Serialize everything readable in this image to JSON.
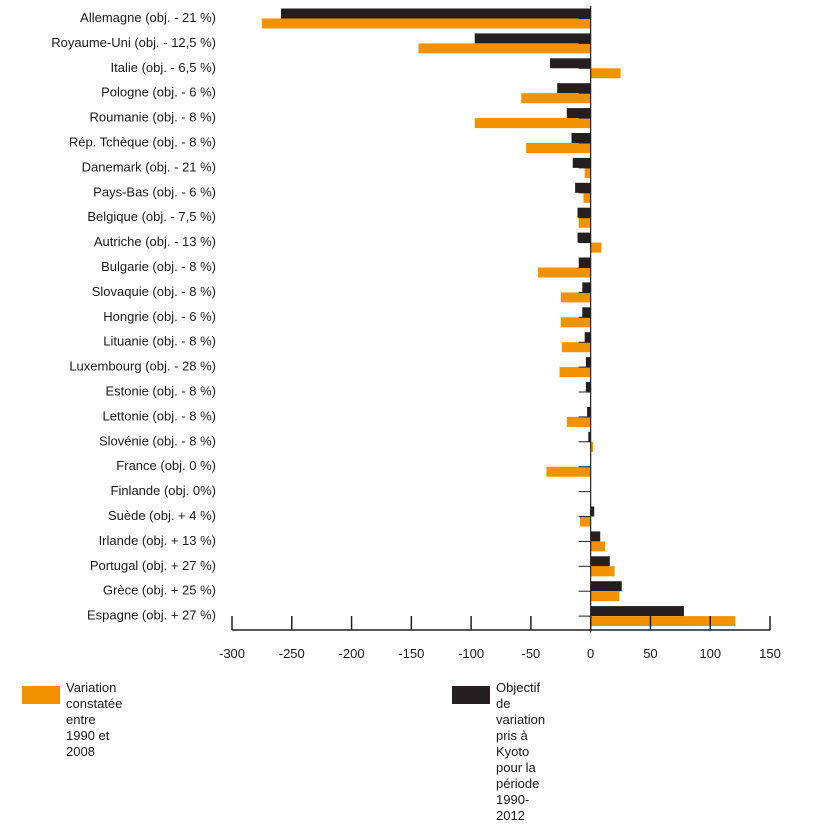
{
  "chart_data": {
    "type": "bar",
    "orientation": "horizontal",
    "categories": [
      "Allemagne (obj. - 21 %)",
      "Royaume-Uni (obj. - 12,5 %)",
      "Italie (obj. - 6,5 %)",
      "Pologne (obj. - 6 %)",
      "Roumanie (obj. - 8 %)",
      "Rép. Tchèque (obj. - 8 %)",
      "Danemark (obj. - 21 %)",
      "Pays-Bas (obj. - 6 %)",
      "Belgique (obj. - 7,5 %)",
      "Autriche (obj. - 13 %)",
      "Bulgarie (obj. - 8 %)",
      "Slovaquie (obj. - 8 %)",
      "Hongrie (obj. - 6 %)",
      "Lituanie (obj. - 8 %)",
      "Luxembourg (obj. - 28 %)",
      "Estonie (obj. - 8 %)",
      "Lettonie (obj. - 8 %)",
      "Slovénie (obj. - 8 %)",
      "France (obj. 0 %)",
      "Finlande (obj. 0%)",
      "Suède (obj. + 4 %)",
      "Irlande (obj. + 13 %)",
      "Portugal (obj. + 27 %)",
      "Grèce (obj. + 25 %)",
      "Espagne (obj. + 27 %)"
    ],
    "series": [
      {
        "name": "Objectif de variation pris à Kyoto pour la période 1990-2012",
        "color": "#231f20",
        "values": [
          -259,
          -97,
          -34,
          -28,
          -20,
          -16,
          -15,
          -13,
          -11,
          -11,
          -10,
          -7,
          -7,
          -5,
          -4,
          -4,
          -3,
          -2,
          0,
          0,
          3,
          8,
          16,
          26,
          78
        ]
      },
      {
        "name": "Variation constatée entre 1990 et 2008",
        "color": "#f39200",
        "values": [
          -275,
          -144,
          25,
          -58,
          -97,
          -54,
          -5,
          -6,
          -10,
          9,
          -44,
          -25,
          -25,
          -24,
          -26,
          0,
          -20,
          2,
          -37,
          0,
          -9,
          12,
          20,
          24,
          121
        ]
      }
    ],
    "x_ticks": [
      "-300",
      "-250",
      "-200",
      "-150",
      "-100",
      "-50",
      "0",
      "50",
      "100",
      "150"
    ],
    "xlim": [
      -300,
      150
    ],
    "grid": false,
    "legend": {
      "placement": "bottom",
      "items": [
        {
          "label": "Variation constatée\nentre 1990 et 2008",
          "color": "#f39200"
        },
        {
          "label": "Objectif de variation pris à Kyoto\npour la période 1990-2012",
          "color": "#231f20"
        }
      ]
    }
  }
}
